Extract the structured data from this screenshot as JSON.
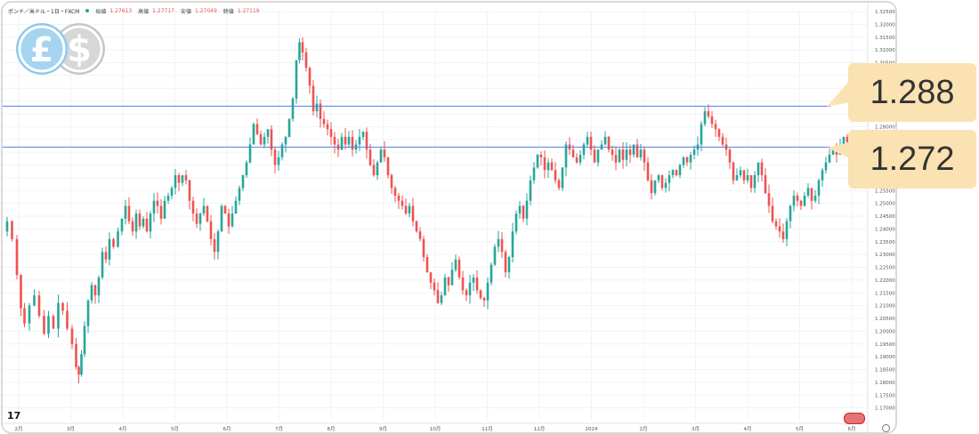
{
  "header": {
    "symbol": "ポンド／米ドル・1日・FXCM",
    "open_label": "始値",
    "open_value": "1.27613",
    "high_label": "高値",
    "high_value": "1.27717",
    "low_label": "安値",
    "low_value": "1.27049",
    "close_label": "終値",
    "close_value": "1.27119"
  },
  "icons": {
    "pound_coin": "pound-coin-icon",
    "dollar_coin": "dollar-coin-icon",
    "pound_symbol": "£",
    "dollar_symbol": "$",
    "pound_color": "#8ec9ec",
    "dollar_color": "#c6c6c6"
  },
  "callouts": [
    {
      "label": "1.288",
      "value": 1.288
    },
    {
      "label": "1.272",
      "value": 1.272
    }
  ],
  "brand": {
    "logo_text": "17"
  },
  "colors": {
    "up": "#26a69a",
    "down": "#ef5350",
    "hline": "#4f7fe0",
    "grid": "#f0f3f6",
    "callout_bg": "#fbe2b3"
  },
  "chart_data": {
    "type": "candlestick",
    "ylim": [
      1.165,
      1.325
    ],
    "y_ticks": [
      "1.17000",
      "1.17500",
      "1.18000",
      "1.18500",
      "1.19000",
      "1.19500",
      "1.20000",
      "1.20500",
      "1.21000",
      "1.21500",
      "1.22000",
      "1.22500",
      "1.23000",
      "1.23500",
      "1.24000",
      "1.24500",
      "1.25000",
      "1.25500",
      "1.26000",
      "1.26500",
      "1.27000",
      "1.27500",
      "1.28000",
      "1.28500",
      "1.29000",
      "1.29500",
      "1.30000",
      "1.30500",
      "1.31000",
      "1.31500",
      "1.32000",
      "1.32500"
    ],
    "x_ticks": [
      "2月",
      "3月",
      "4月",
      "5月",
      "6月",
      "7月",
      "8月",
      "9月",
      "10月",
      "11月",
      "12月",
      "2024",
      "2月",
      "3月",
      "4月",
      "5月",
      "6月"
    ],
    "horizontal_lines": [
      1.288,
      1.272
    ],
    "path_points": [
      [
        0,
        1.239
      ],
      [
        6,
        1.243
      ],
      [
        11,
        1.236
      ],
      [
        17,
        1.222
      ],
      [
        20,
        1.209
      ],
      [
        25,
        1.203
      ],
      [
        31,
        1.21
      ],
      [
        36,
        1.214
      ],
      [
        42,
        1.206
      ],
      [
        47,
        1.199
      ],
      [
        52,
        1.206
      ],
      [
        58,
        1.201
      ],
      [
        63,
        1.211
      ],
      [
        68,
        1.208
      ],
      [
        73,
        1.201
      ],
      [
        79,
        1.195
      ],
      [
        82,
        1.186
      ],
      [
        85,
        1.183
      ],
      [
        88,
        1.191
      ],
      [
        92,
        1.202
      ],
      [
        96,
        1.212
      ],
      [
        100,
        1.218
      ],
      [
        104,
        1.214
      ],
      [
        108,
        1.221
      ],
      [
        112,
        1.231
      ],
      [
        116,
        1.228
      ],
      [
        120,
        1.236
      ],
      [
        125,
        1.233
      ],
      [
        130,
        1.239
      ],
      [
        134,
        1.244
      ],
      [
        138,
        1.249
      ],
      [
        142,
        1.243
      ],
      [
        146,
        1.239
      ],
      [
        150,
        1.246
      ],
      [
        154,
        1.241
      ],
      [
        158,
        1.244
      ],
      [
        162,
        1.239
      ],
      [
        166,
        1.246
      ],
      [
        170,
        1.251
      ],
      [
        174,
        1.249
      ],
      [
        178,
        1.244
      ],
      [
        182,
        1.251
      ],
      [
        186,
        1.253
      ],
      [
        190,
        1.256
      ],
      [
        194,
        1.261
      ],
      [
        198,
        1.258
      ],
      [
        202,
        1.261
      ],
      [
        206,
        1.259
      ],
      [
        210,
        1.251
      ],
      [
        214,
        1.246
      ],
      [
        218,
        1.242
      ],
      [
        222,
        1.246
      ],
      [
        226,
        1.249
      ],
      [
        230,
        1.243
      ],
      [
        234,
        1.236
      ],
      [
        238,
        1.231
      ],
      [
        242,
        1.239
      ],
      [
        246,
        1.249
      ],
      [
        250,
        1.246
      ],
      [
        254,
        1.241
      ],
      [
        258,
        1.246
      ],
      [
        262,
        1.251
      ],
      [
        266,
        1.256
      ],
      [
        270,
        1.261
      ],
      [
        274,
        1.266
      ],
      [
        278,
        1.273
      ],
      [
        282,
        1.281
      ],
      [
        286,
        1.277
      ],
      [
        290,
        1.273
      ],
      [
        294,
        1.276
      ],
      [
        298,
        1.279
      ],
      [
        302,
        1.271
      ],
      [
        306,
        1.265
      ],
      [
        310,
        1.268
      ],
      [
        314,
        1.273
      ],
      [
        318,
        1.276
      ],
      [
        322,
        1.283
      ],
      [
        326,
        1.291
      ],
      [
        330,
        1.306
      ],
      [
        333,
        1.313
      ],
      [
        337,
        1.309
      ],
      [
        341,
        1.303
      ],
      [
        345,
        1.296
      ],
      [
        349,
        1.286
      ],
      [
        353,
        1.289
      ],
      [
        357,
        1.283
      ],
      [
        361,
        1.281
      ],
      [
        365,
        1.279
      ],
      [
        369,
        1.276
      ],
      [
        373,
        1.273
      ],
      [
        377,
        1.271
      ],
      [
        381,
        1.276
      ],
      [
        385,
        1.273
      ],
      [
        389,
        1.276
      ],
      [
        393,
        1.271
      ],
      [
        397,
        1.273
      ],
      [
        401,
        1.276
      ],
      [
        405,
        1.278
      ],
      [
        409,
        1.271
      ],
      [
        413,
        1.265
      ],
      [
        417,
        1.261
      ],
      [
        421,
        1.266
      ],
      [
        425,
        1.271
      ],
      [
        429,
        1.268
      ],
      [
        433,
        1.261
      ],
      [
        437,
        1.256
      ],
      [
        441,
        1.253
      ],
      [
        445,
        1.251
      ],
      [
        449,
        1.249
      ],
      [
        453,
        1.246
      ],
      [
        457,
        1.249
      ],
      [
        461,
        1.243
      ],
      [
        465,
        1.239
      ],
      [
        469,
        1.236
      ],
      [
        473,
        1.229
      ],
      [
        477,
        1.223
      ],
      [
        481,
        1.219
      ],
      [
        485,
        1.216
      ],
      [
        489,
        1.211
      ],
      [
        493,
        1.214
      ],
      [
        497,
        1.221
      ],
      [
        501,
        1.218
      ],
      [
        505,
        1.224
      ],
      [
        509,
        1.228
      ],
      [
        513,
        1.221
      ],
      [
        517,
        1.216
      ],
      [
        521,
        1.214
      ],
      [
        525,
        1.219
      ],
      [
        529,
        1.221
      ],
      [
        533,
        1.216
      ],
      [
        537,
        1.213
      ],
      [
        541,
        1.212
      ],
      [
        545,
        1.219
      ],
      [
        549,
        1.226
      ],
      [
        553,
        1.233
      ],
      [
        557,
        1.236
      ],
      [
        561,
        1.231
      ],
      [
        565,
        1.223
      ],
      [
        569,
        1.229
      ],
      [
        573,
        1.239
      ],
      [
        577,
        1.246
      ],
      [
        581,
        1.249
      ],
      [
        585,
        1.244
      ],
      [
        589,
        1.251
      ],
      [
        593,
        1.259
      ],
      [
        597,
        1.264
      ],
      [
        601,
        1.269
      ],
      [
        605,
        1.268
      ],
      [
        609,
        1.263
      ],
      [
        613,
        1.266
      ],
      [
        617,
        1.263
      ],
      [
        621,
        1.259
      ],
      [
        625,
        1.256
      ],
      [
        629,
        1.264
      ],
      [
        633,
        1.273
      ],
      [
        637,
        1.271
      ],
      [
        641,
        1.268
      ],
      [
        645,
        1.266
      ],
      [
        649,
        1.269
      ],
      [
        653,
        1.273
      ],
      [
        657,
        1.276
      ],
      [
        661,
        1.271
      ],
      [
        665,
        1.266
      ],
      [
        669,
        1.271
      ],
      [
        673,
        1.273
      ],
      [
        677,
        1.276
      ],
      [
        681,
        1.271
      ],
      [
        685,
        1.269
      ],
      [
        689,
        1.266
      ],
      [
        693,
        1.271
      ],
      [
        697,
        1.267
      ],
      [
        701,
        1.271
      ],
      [
        705,
        1.269
      ],
      [
        709,
        1.273
      ],
      [
        713,
        1.268
      ],
      [
        717,
        1.271
      ],
      [
        721,
        1.266
      ],
      [
        725,
        1.259
      ],
      [
        729,
        1.254
      ],
      [
        733,
        1.259
      ],
      [
        737,
        1.261
      ],
      [
        741,
        1.256
      ],
      [
        745,
        1.258
      ],
      [
        749,
        1.261
      ],
      [
        753,
        1.263
      ],
      [
        757,
        1.261
      ],
      [
        761,
        1.265
      ],
      [
        765,
        1.268
      ],
      [
        769,
        1.266
      ],
      [
        773,
        1.269
      ],
      [
        777,
        1.271
      ],
      [
        781,
        1.273
      ],
      [
        785,
        1.281
      ],
      [
        789,
        1.286
      ],
      [
        793,
        1.284
      ],
      [
        797,
        1.281
      ],
      [
        801,
        1.279
      ],
      [
        805,
        1.276
      ],
      [
        809,
        1.273
      ],
      [
        813,
        1.271
      ],
      [
        817,
        1.266
      ],
      [
        821,
        1.259
      ],
      [
        825,
        1.261
      ],
      [
        829,
        1.263
      ],
      [
        833,
        1.259
      ],
      [
        837,
        1.261
      ],
      [
        841,
        1.256
      ],
      [
        845,
        1.261
      ],
      [
        849,
        1.266
      ],
      [
        853,
        1.261
      ],
      [
        857,
        1.254
      ],
      [
        861,
        1.249
      ],
      [
        865,
        1.243
      ],
      [
        869,
        1.241
      ],
      [
        873,
        1.239
      ],
      [
        877,
        1.236
      ],
      [
        881,
        1.243
      ],
      [
        885,
        1.249
      ],
      [
        889,
        1.253
      ],
      [
        893,
        1.251
      ],
      [
        897,
        1.249
      ],
      [
        901,
        1.253
      ],
      [
        905,
        1.256
      ],
      [
        909,
        1.251
      ],
      [
        913,
        1.253
      ],
      [
        917,
        1.259
      ],
      [
        921,
        1.263
      ],
      [
        925,
        1.266
      ],
      [
        929,
        1.269
      ],
      [
        933,
        1.271
      ],
      [
        937,
        1.269
      ],
      [
        941,
        1.273
      ],
      [
        945,
        1.276
      ],
      [
        949,
        1.274
      ]
    ]
  }
}
